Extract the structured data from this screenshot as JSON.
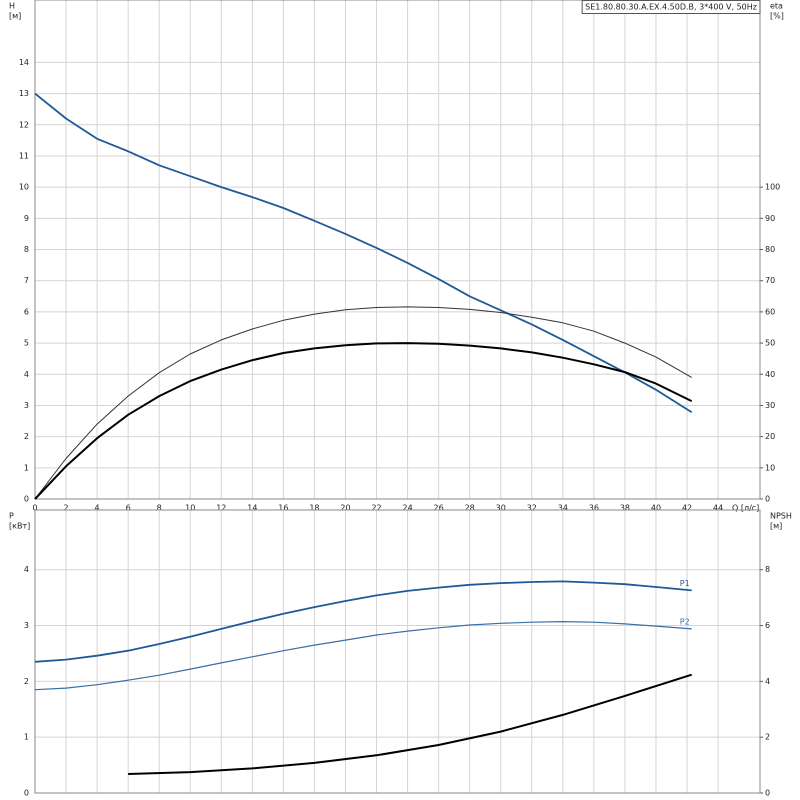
{
  "chart_data": [
    {
      "type": "line",
      "title": "SE1.80.80.30.A.EX.4.50D.B, 3*400 V, 50Hz",
      "ylabel": [
        "H",
        "[м]"
      ],
      "y2label": [
        "eta",
        "[%]"
      ],
      "xlabel": "Q [л/с]",
      "xlim": [
        0,
        46.7
      ],
      "xticks": [
        0,
        2,
        4,
        6,
        8,
        10,
        12,
        14,
        16,
        18,
        20,
        22,
        24,
        26,
        28,
        30,
        32,
        34,
        36,
        38,
        40,
        42,
        44
      ],
      "ylim": [
        0,
        16
      ],
      "yticks": [
        0,
        1,
        2,
        3,
        4,
        5,
        6,
        7,
        8,
        9,
        10,
        11,
        12,
        13,
        14
      ],
      "y2lim": [
        0,
        160
      ],
      "y2ticks": [
        0,
        10,
        20,
        30,
        40,
        50,
        60,
        70,
        80,
        90,
        100
      ],
      "grid": true,
      "x": [
        0,
        2,
        4,
        6,
        8,
        10,
        12,
        14,
        16,
        18,
        20,
        22,
        24,
        26,
        28,
        30,
        32,
        34,
        36,
        38,
        40,
        42.3
      ],
      "series": [
        {
          "color": "#1f5a96",
          "width": 1.8,
          "values": [
            13.0,
            12.2,
            11.55,
            11.15,
            10.7,
            10.35,
            10.0,
            9.68,
            9.33,
            8.92,
            8.5,
            8.05,
            7.57,
            7.05,
            6.5,
            6.05,
            5.6,
            5.1,
            4.58,
            4.06,
            3.5,
            2.78
          ]
        },
        {
          "color": "#333333",
          "width": 1,
          "axis": "y2",
          "values": [
            0,
            13,
            24,
            33,
            40.5,
            46.5,
            51,
            54.5,
            57.3,
            59.3,
            60.7,
            61.4,
            61.6,
            61.4,
            60.8,
            59.8,
            58.3,
            56.5,
            53.8,
            50,
            45.5,
            39
          ]
        },
        {
          "color": "#000000",
          "width": 2,
          "axis": "y2",
          "values": [
            0,
            10.5,
            19.5,
            27,
            33,
            37.8,
            41.5,
            44.5,
            46.8,
            48.3,
            49.3,
            49.9,
            50,
            49.8,
            49.2,
            48.3,
            47,
            45.3,
            43.2,
            40.7,
            37,
            31.4
          ]
        }
      ]
    },
    {
      "type": "line",
      "ylabel": [
        "P",
        "[кВт]"
      ],
      "y2label": [
        "NPSH",
        "[м]"
      ],
      "xlim": [
        0,
        46.7
      ],
      "ylim": [
        0,
        5.07
      ],
      "yticks": [
        0,
        1,
        2,
        3,
        4
      ],
      "y2lim": [
        0,
        10.14
      ],
      "y2ticks": [
        0,
        2,
        4,
        6,
        8
      ],
      "grid": true,
      "series": [
        {
          "name": "P1",
          "color": "#1f5a96",
          "width": 1.8,
          "x": [
            0,
            2,
            4,
            6,
            8,
            10,
            12,
            14,
            16,
            18,
            20,
            22,
            24,
            26,
            28,
            30,
            32,
            34,
            36,
            38,
            40,
            42.3
          ],
          "values": [
            2.35,
            2.39,
            2.46,
            2.55,
            2.67,
            2.8,
            2.94,
            3.08,
            3.21,
            3.33,
            3.44,
            3.54,
            3.62,
            3.68,
            3.73,
            3.76,
            3.78,
            3.79,
            3.77,
            3.74,
            3.69,
            3.63
          ]
        },
        {
          "name": "P2",
          "color": "#3a6ea5",
          "width": 1.2,
          "x": [
            0,
            2,
            4,
            6,
            8,
            10,
            12,
            14,
            16,
            18,
            20,
            22,
            24,
            26,
            28,
            30,
            32,
            34,
            36,
            38,
            40,
            42.3
          ],
          "values": [
            1.85,
            1.88,
            1.94,
            2.02,
            2.11,
            2.22,
            2.33,
            2.44,
            2.55,
            2.65,
            2.74,
            2.83,
            2.9,
            2.96,
            3.01,
            3.04,
            3.06,
            3.07,
            3.06,
            3.03,
            2.99,
            2.94
          ]
        },
        {
          "color": "#000000",
          "width": 2,
          "axis": "y2",
          "x": [
            6,
            10,
            14,
            18,
            22,
            26,
            30,
            34,
            38,
            42.3
          ],
          "values": [
            0.68,
            0.75,
            0.88,
            1.08,
            1.35,
            1.72,
            2.2,
            2.8,
            3.48,
            4.24
          ]
        }
      ]
    }
  ]
}
